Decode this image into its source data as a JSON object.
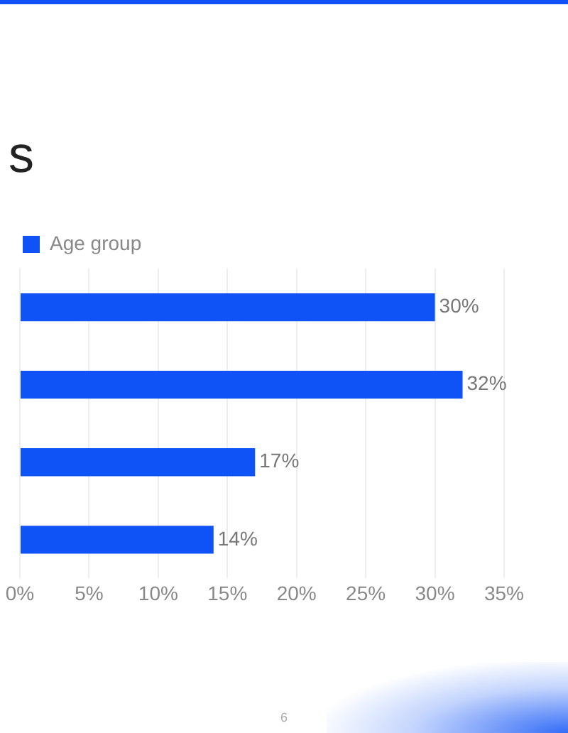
{
  "chart_data": {
    "type": "bar",
    "orientation": "horizontal",
    "title": "s",
    "categories": [
      null,
      null,
      null,
      null
    ],
    "series": [
      {
        "name": "Age group",
        "color": "#0f52f5",
        "values": [
          30,
          32,
          17,
          14
        ],
        "value_labels": [
          "30%",
          "32%",
          "17%",
          "14%"
        ]
      }
    ],
    "xlim": [
      0,
      35
    ],
    "xticks": [
      {
        "value": 0,
        "label": "0%"
      },
      {
        "value": 5,
        "label": "5%"
      },
      {
        "value": 10,
        "label": "10%"
      },
      {
        "value": 15,
        "label": "15%"
      },
      {
        "value": 20,
        "label": "20%"
      },
      {
        "value": 25,
        "label": "25%"
      },
      {
        "value": 30,
        "label": "30%"
      },
      {
        "value": 35,
        "label": "35%"
      }
    ],
    "grid": "x",
    "legend": "top left",
    "annotations": [
      "6"
    ]
  }
}
